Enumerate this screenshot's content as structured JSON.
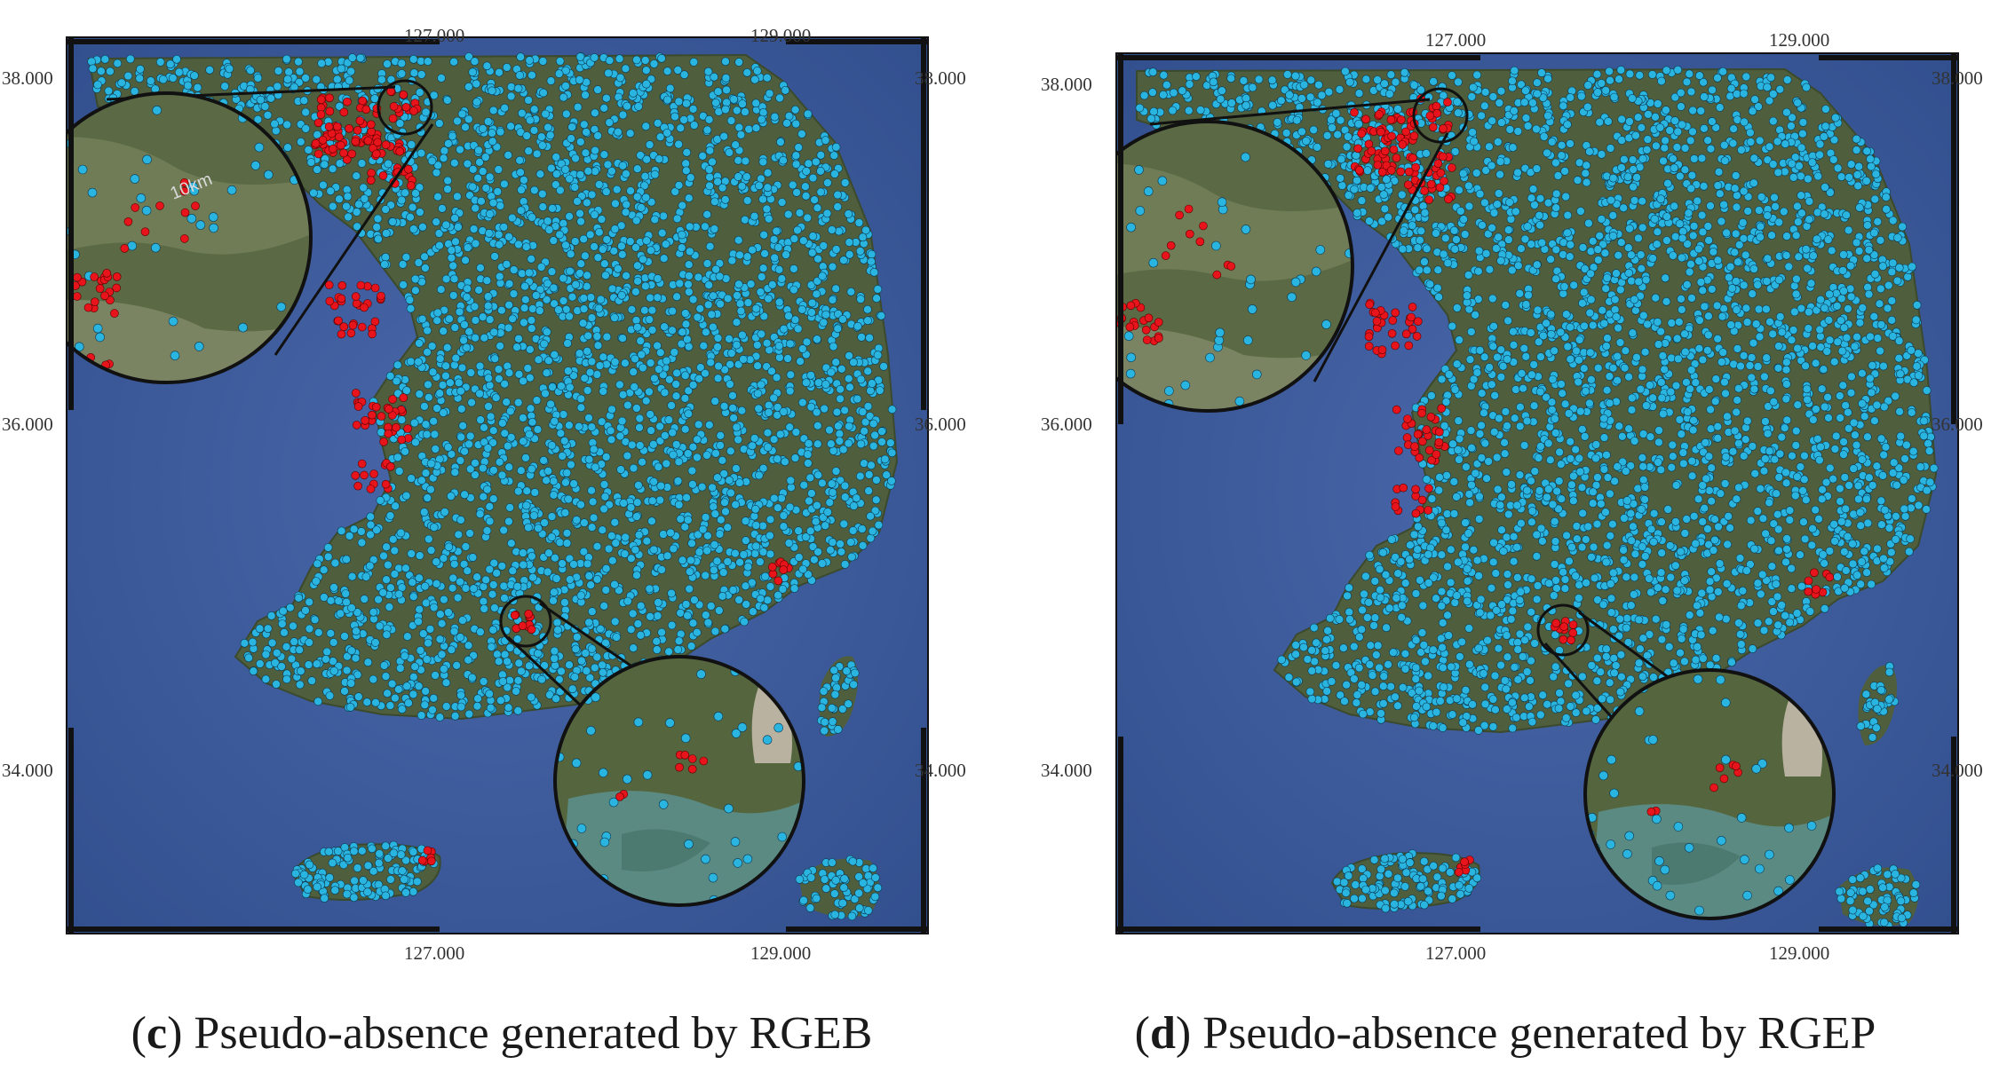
{
  "panels": [
    {
      "letter": "c",
      "caption_text": "Pseudo-absence generated by RGEB",
      "top_ticks": [
        "127.000",
        "129.000"
      ],
      "bottom_ticks": [
        "127.000",
        "129.000"
      ],
      "left_ticks": [
        "38.000",
        "36.000",
        "34.000"
      ],
      "right_ticks": [
        "38.000",
        "36.000",
        "34.000"
      ],
      "scale_label": "10km",
      "insets": [
        "north-west inset",
        "south coast inset"
      ]
    },
    {
      "letter": "d",
      "caption_text": "Pseudo-absence generated by RGEP",
      "top_ticks": [
        "127.000",
        "129.000"
      ],
      "bottom_ticks": [
        "127.000",
        "129.000"
      ],
      "left_ticks": [
        "38.000",
        "36.000",
        "34.000"
      ],
      "right_ticks": [
        "38.000",
        "36.000",
        "34.000"
      ],
      "scale_label": "",
      "insets": [
        "north-west inset",
        "south coast inset"
      ]
    }
  ],
  "colors": {
    "sea": "#3d5c9e",
    "land": "#4f5e3c",
    "presence_points": "#e8141b",
    "absence_points": "#2ab4e0",
    "frame": "#111111"
  },
  "legend_semantics": {
    "red_dots": "presence",
    "cyan_dots": "pseudo-absence"
  }
}
